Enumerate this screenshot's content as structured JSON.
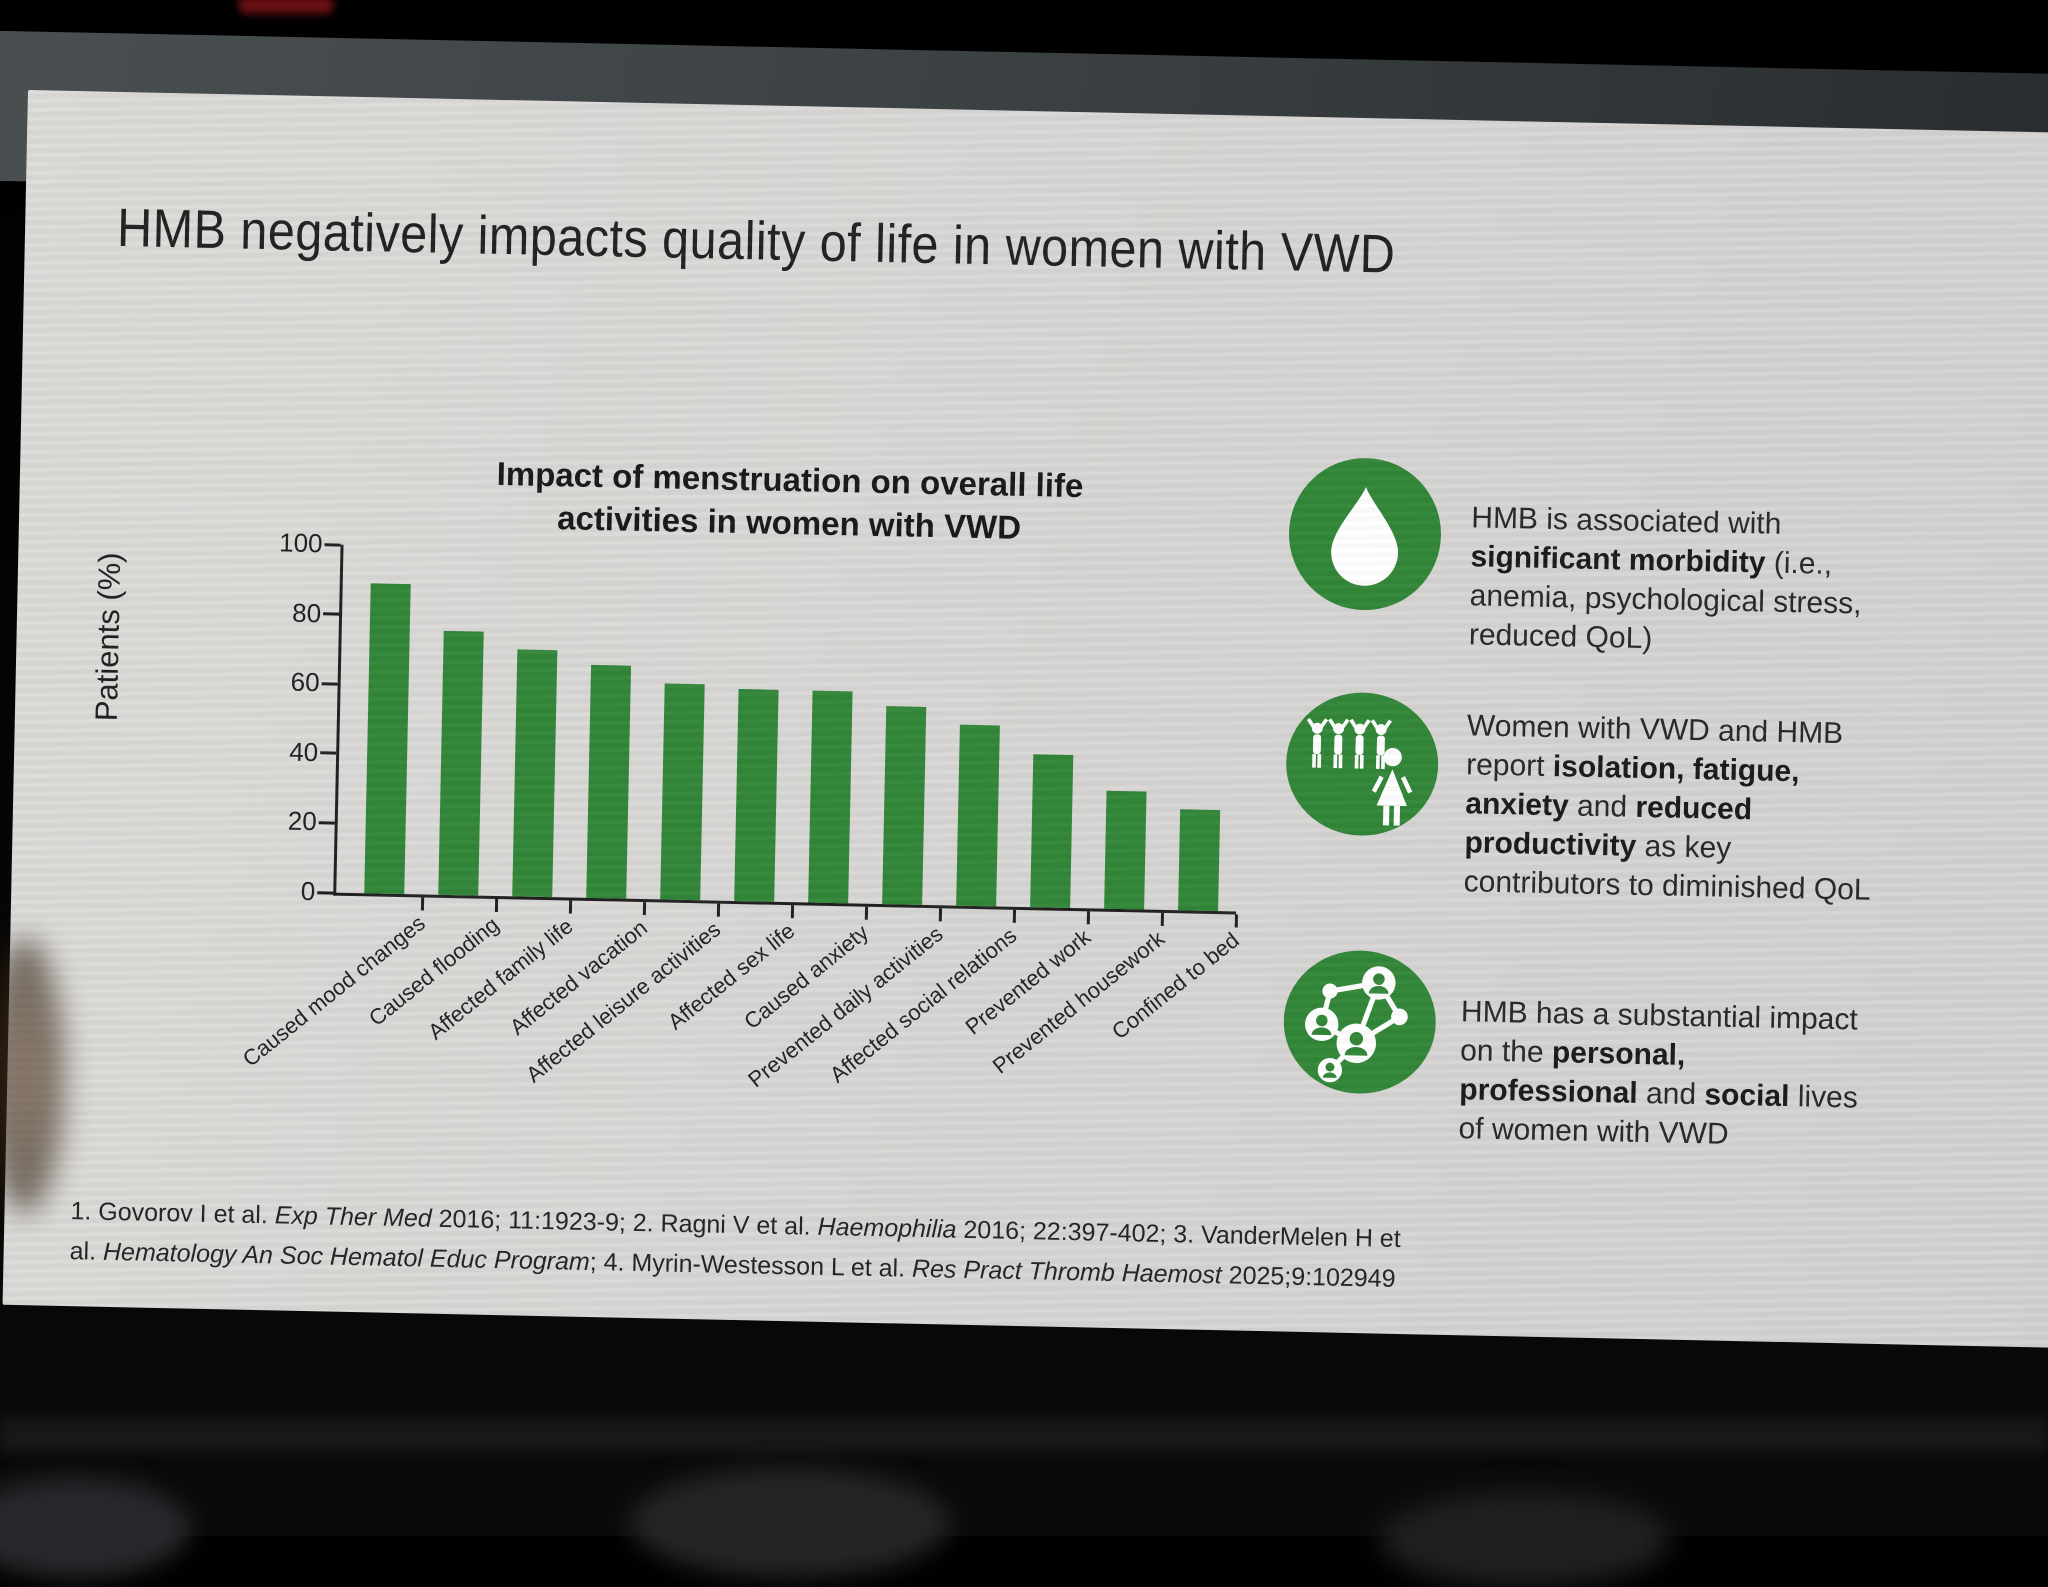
{
  "chart_data": {
    "type": "bar",
    "title": "Impact of menstruation on overall life activities in women with VWD",
    "categories": [
      "Caused mood changes",
      "Caused flooding",
      "Affected family life",
      "Affected vacation",
      "Affected leisure activities",
      "Affected sex life",
      "Caused anxiety",
      "Prevented daily activities",
      "Affected social relations",
      "Prevented work",
      "Prevented housework",
      "Confined to bed"
    ],
    "values": [
      89,
      76,
      71,
      67,
      62,
      61,
      61,
      57,
      52,
      44,
      34,
      29
    ],
    "xlabel": "",
    "ylabel": "Patients (%)",
    "ylim": [
      0,
      100
    ],
    "yticks": [
      0,
      20,
      40,
      60,
      80,
      100
    ],
    "grid": false,
    "legend": "none",
    "bar_color": "#2e8435"
  },
  "slide": {
    "title": "HMB negatively impacts quality of life in women with VWD",
    "chart_title_lines": [
      "Impact of menstruation on overall life",
      "activities in women with VWD"
    ],
    "callouts": [
      {
        "icon": "blood-drop-icon",
        "segments": [
          {
            "t": "HMB is associated with\n"
          },
          {
            "t": "significant morbidity",
            "b": true
          },
          {
            "t": " (i.e.,\nanemia, psychological stress,\nreduced QoL)"
          }
        ]
      },
      {
        "icon": "women-group-icon",
        "segments": [
          {
            "t": "Women with VWD and HMB\nreport "
          },
          {
            "t": "isolation, fatigue,\nanxiety",
            "b": true
          },
          {
            "t": " and "
          },
          {
            "t": "reduced\nproductivity",
            "b": true
          },
          {
            "t": " as key\ncontributors to diminished QoL"
          }
        ]
      },
      {
        "icon": "social-network-icon",
        "segments": [
          {
            "t": "HMB has a substantial impact\non the "
          },
          {
            "t": "personal,\nprofessional",
            "b": true
          },
          {
            "t": " and "
          },
          {
            "t": "social",
            "b": true
          },
          {
            "t": " lives\nof women with VWD"
          }
        ]
      }
    ],
    "footnote_lines": [
      [
        {
          "t": "1. Govorov I et al. "
        },
        {
          "t": "Exp Ther Med",
          "i": true
        },
        {
          "t": " 2016; 11:1923-9; 2. Ragni V et al. "
        },
        {
          "t": "Haemophilia",
          "i": true
        },
        {
          "t": " 2016; 22:397-402; 3. VanderMelen H et"
        }
      ],
      [
        {
          "t": "al. "
        },
        {
          "t": "Hematology An Soc Hematol Educ Program",
          "i": true
        },
        {
          "t": "; 4. Myrin-Westesson L et al. "
        },
        {
          "t": "Res Pract Thromb Haemost",
          "i": true
        },
        {
          "t": " 2025;9:102949"
        }
      ]
    ],
    "colors": {
      "accent_green": "#2e8435",
      "slide_bg": "#d7d6d4"
    }
  }
}
